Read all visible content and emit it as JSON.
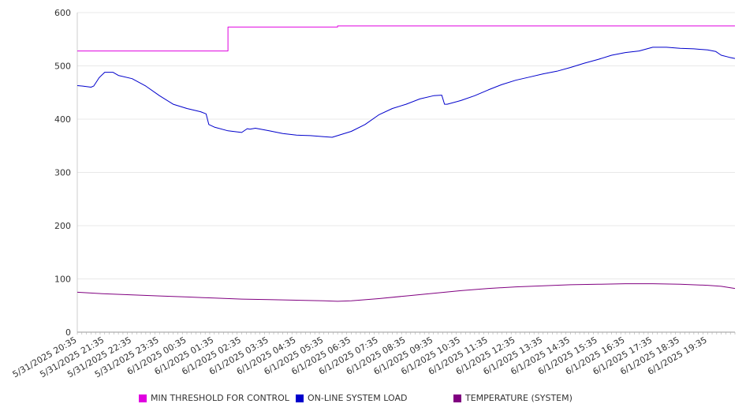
{
  "chart_data": {
    "type": "line",
    "title": "",
    "xlabel": "",
    "ylabel": "",
    "ylim": [
      0,
      600
    ],
    "yticks": [
      0,
      100,
      200,
      300,
      400,
      500,
      600
    ],
    "grid": true,
    "legend_position": "bottom",
    "xtick_labels": [
      "5/31/2025 20:35",
      "5/31/2025 21:35",
      "5/31/2025 22:35",
      "5/31/2025 23:35",
      "6/1/2025 00:35",
      "6/1/2025 01:35",
      "6/1/2025 02:35",
      "6/1/2025 03:35",
      "6/1/2025 04:35",
      "6/1/2025 05:35",
      "6/1/2025 06:35",
      "6/1/2025 07:35",
      "6/1/2025 08:35",
      "6/1/2025 09:35",
      "6/1/2025 10:35",
      "6/1/2025 11:35",
      "6/1/2025 12:35",
      "6/1/2025 13:35",
      "6/1/2025 14:35",
      "6/1/2025 15:35",
      "6/1/2025 16:35",
      "6/1/2025 17:35",
      "6/1/2025 18:35",
      "6/1/2025 19:35"
    ],
    "x_start": "5/31/2025 20:35",
    "x_end": "6/1/2025 20:35",
    "x_hours": [
      0,
      5.5,
      5.5,
      9.5,
      9.5,
      24
    ],
    "series": [
      {
        "name": "MIN THRESHOLD FOR CONTROL",
        "color": "#e000e0",
        "x": [
          0,
          5.5,
          5.5,
          9.5,
          9.5,
          24
        ],
        "values": [
          528,
          528,
          573,
          573,
          575,
          575
        ]
      },
      {
        "name": "ON-LINE SYSTEM LOAD",
        "color": "#0000cc",
        "x": [
          0,
          0.2,
          0.5,
          0.6,
          0.8,
          1,
          1.3,
          1.5,
          2,
          2.5,
          3,
          3.5,
          4,
          4.5,
          4.7,
          4.8,
          5,
          5.5,
          6,
          6.2,
          6.3,
          6.5,
          7,
          7.5,
          8,
          8.5,
          9,
          9.3,
          9.5,
          10,
          10.5,
          11,
          11.5,
          12,
          12.5,
          13,
          13.3,
          13.4,
          13.5,
          14,
          14.5,
          15,
          15.5,
          16,
          16.5,
          17,
          17.5,
          18,
          18.5,
          19,
          19.5,
          20,
          20.5,
          21,
          21.3,
          21.5,
          22,
          22.5,
          23,
          23.3,
          23.5,
          23.8,
          24
        ],
        "values": [
          463,
          462,
          460,
          462,
          478,
          488,
          488,
          482,
          476,
          462,
          444,
          428,
          420,
          414,
          410,
          390,
          385,
          378,
          375,
          382,
          381,
          383,
          378,
          373,
          370,
          369,
          367,
          366,
          369,
          377,
          390,
          408,
          420,
          428,
          438,
          444,
          445,
          428,
          428,
          435,
          444,
          455,
          465,
          473,
          479,
          485,
          490,
          497,
          505,
          512,
          520,
          525,
          528,
          535,
          535,
          535,
          533,
          532,
          530,
          527,
          520,
          516,
          514
        ]
      },
      {
        "name": "TEMPERATURE (SYSTEM)",
        "color": "#800080",
        "x": [
          0,
          1,
          2,
          3,
          4,
          5,
          6,
          7,
          8,
          9,
          9.5,
          10,
          11,
          12,
          13,
          14,
          15,
          16,
          17,
          18,
          19,
          20,
          21,
          22,
          23,
          23.5,
          24
        ],
        "values": [
          75,
          72,
          70,
          68,
          66,
          64,
          62,
          61,
          60,
          59,
          58,
          59,
          63,
          68,
          73,
          78,
          82,
          85,
          87,
          89,
          90,
          91,
          91,
          90,
          88,
          86,
          82
        ]
      }
    ]
  }
}
